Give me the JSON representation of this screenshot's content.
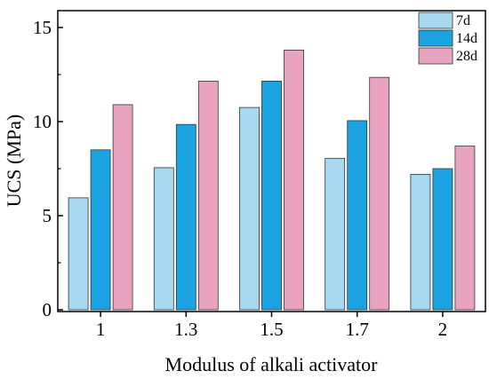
{
  "chart_data": {
    "type": "bar",
    "title": "",
    "xlabel": "Modulus of alkali activator",
    "ylabel": "UCS (MPa)",
    "categories": [
      "1",
      "1.3",
      "1.5",
      "1.7",
      "2"
    ],
    "ylim": [
      0,
      16
    ],
    "yticks": [
      0,
      5,
      10,
      15
    ],
    "grid": false,
    "legend_position": "top-right",
    "series": [
      {
        "name": "7d",
        "color": "#a8d8f0",
        "values": [
          5.95,
          7.55,
          10.75,
          8.05,
          7.2
        ]
      },
      {
        "name": "14d",
        "color": "#1aa3e0",
        "values": [
          8.5,
          9.85,
          12.15,
          10.05,
          7.5
        ]
      },
      {
        "name": "28d",
        "color": "#e8a3c0",
        "values": [
          10.9,
          12.15,
          13.8,
          12.35,
          8.7
        ]
      }
    ]
  }
}
